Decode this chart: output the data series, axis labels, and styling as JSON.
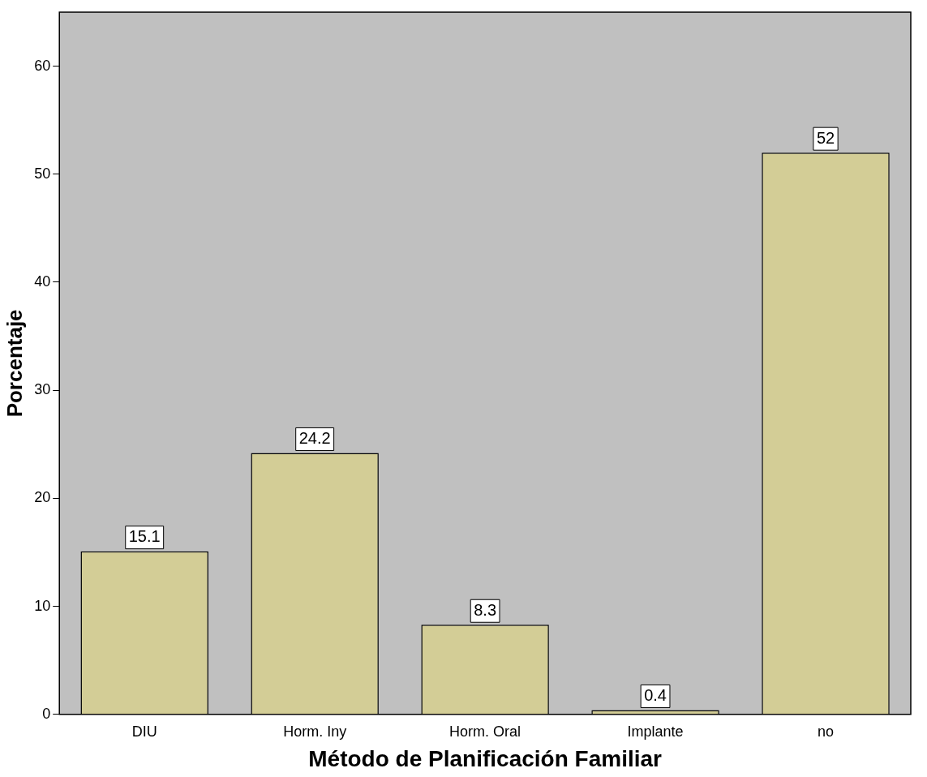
{
  "chart_data": {
    "type": "bar",
    "xlabel": "Método de Planificación Familiar",
    "ylabel": "Porcentaje",
    "categories": [
      "DIU",
      "Horm. Iny",
      "Horm. Oral",
      "Implante",
      "no"
    ],
    "values": [
      15.1,
      24.2,
      8.3,
      0.4,
      52
    ],
    "color": "#d3cd96",
    "ylim": [
      0,
      65
    ],
    "yticks": [
      0,
      10,
      20,
      30,
      40,
      50,
      60
    ],
    "data_labels": true,
    "grid": false,
    "legend": false
  }
}
